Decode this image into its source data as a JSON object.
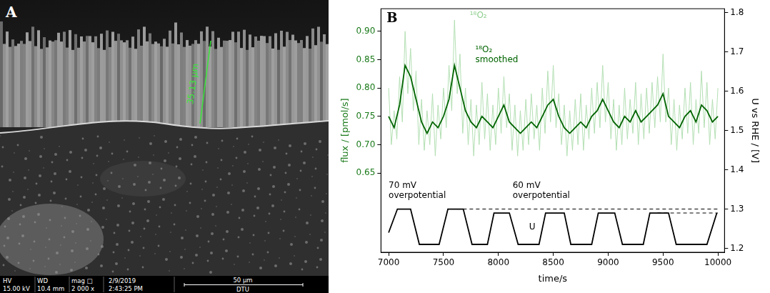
{
  "image_panel": {
    "label": "A",
    "measurement": "35.13 µm",
    "info_bar": [
      {
        "head": "HV",
        "value": "15.00 kV"
      },
      {
        "head": "WD",
        "value": "10.4 mm"
      },
      {
        "head": "mag □",
        "value": "2 000 x"
      },
      {
        "head": "2/9/2019",
        "value": "2:43:25 PM"
      }
    ],
    "scale_bar": "50 µm",
    "institution": "DTU"
  },
  "chart_data": {
    "type": "line",
    "panel_label": "B",
    "xlabel": "time/s",
    "ylabel": "flux / [pmol/s]",
    "y2label": "U vs RHE / [V]",
    "xlim": [
      6930,
      10060
    ],
    "xticks": [
      7000,
      7500,
      8000,
      8500,
      9000,
      9500,
      10000
    ],
    "ylim": [
      0.51,
      0.94
    ],
    "yticks": [
      0.65,
      {
        "value": 0.7,
        "label": "0.70"
      },
      0.75,
      {
        "value": 0.8,
        "label": "0.80"
      },
      0.85,
      {
        "value": 0.9,
        "label": "0.90"
      }
    ],
    "y2lim": [
      1.19,
      1.81
    ],
    "y2ticks": [
      1.2,
      1.3,
      1.4,
      1.5,
      1.6,
      1.7,
      1.8
    ],
    "grid": false,
    "series": [
      {
        "color": "#b3dfb3",
        "x": [
          7000,
          7025,
          7050,
          7075,
          7100,
          7125,
          7150,
          7175,
          7200,
          7225,
          7250,
          7275,
          7300,
          7325,
          7350,
          7375,
          7400,
          7425,
          7450,
          7475,
          7500,
          7525,
          7550,
          7575,
          7600,
          7625,
          7650,
          7675,
          7700,
          7725,
          7750,
          7775,
          7800,
          7825,
          7850,
          7875,
          7900,
          7925,
          7950,
          7975,
          8000,
          8025,
          8050,
          8075,
          8100,
          8125,
          8150,
          8175,
          8200,
          8225,
          8250,
          8275,
          8300,
          8325,
          8350,
          8375,
          8400,
          8425,
          8450,
          8475,
          8500,
          8525,
          8550,
          8575,
          8600,
          8625,
          8650,
          8675,
          8700,
          8725,
          8750,
          8775,
          8800,
          8825,
          8850,
          8875,
          8900,
          8925,
          8950,
          8975,
          9000,
          9025,
          9050,
          9075,
          9100,
          9125,
          9150,
          9175,
          9200,
          9225,
          9250,
          9275,
          9300,
          9325,
          9350,
          9375,
          9400,
          9425,
          9450,
          9475,
          9500,
          9525,
          9550,
          9575,
          9600,
          9625,
          9650,
          9675,
          9700,
          9725,
          9750,
          9775,
          9800,
          9825,
          9850,
          9875,
          9900,
          9925,
          9950,
          9975,
          10000
        ],
        "values": [
          0.8,
          0.7,
          0.76,
          0.71,
          0.82,
          0.74,
          0.9,
          0.79,
          0.87,
          0.76,
          0.83,
          0.7,
          0.78,
          0.69,
          0.76,
          0.7,
          0.79,
          0.68,
          0.77,
          0.71,
          0.8,
          0.73,
          0.84,
          0.76,
          0.92,
          0.79,
          0.86,
          0.72,
          0.8,
          0.7,
          0.78,
          0.68,
          0.77,
          0.7,
          0.81,
          0.71,
          0.79,
          0.69,
          0.77,
          0.7,
          0.8,
          0.72,
          0.82,
          0.73,
          0.79,
          0.69,
          0.77,
          0.68,
          0.76,
          0.69,
          0.78,
          0.7,
          0.79,
          0.71,
          0.77,
          0.69,
          0.8,
          0.72,
          0.83,
          0.74,
          0.84,
          0.73,
          0.79,
          0.7,
          0.77,
          0.68,
          0.76,
          0.69,
          0.78,
          0.7,
          0.79,
          0.69,
          0.77,
          0.71,
          0.8,
          0.72,
          0.81,
          0.73,
          0.84,
          0.74,
          0.81,
          0.71,
          0.78,
          0.69,
          0.77,
          0.7,
          0.8,
          0.71,
          0.78,
          0.72,
          0.81,
          0.7,
          0.79,
          0.71,
          0.8,
          0.72,
          0.81,
          0.73,
          0.82,
          0.74,
          0.86,
          0.74,
          0.8,
          0.7,
          0.78,
          0.69,
          0.77,
          0.71,
          0.8,
          0.72,
          0.81,
          0.7,
          0.78,
          0.72,
          0.83,
          0.73,
          0.81,
          0.7,
          0.78,
          0.71,
          0.8
        ]
      },
      {
        "color": "#006400",
        "x": [
          7000,
          7050,
          7100,
          7150,
          7200,
          7250,
          7300,
          7350,
          7400,
          7450,
          7500,
          7550,
          7600,
          7650,
          7700,
          7750,
          7800,
          7850,
          7900,
          7950,
          8000,
          8050,
          8100,
          8150,
          8200,
          8250,
          8300,
          8350,
          8400,
          8450,
          8500,
          8550,
          8600,
          8650,
          8700,
          8750,
          8800,
          8850,
          8900,
          8950,
          9000,
          9050,
          9100,
          9150,
          9200,
          9250,
          9300,
          9350,
          9400,
          9450,
          9500,
          9550,
          9600,
          9650,
          9700,
          9750,
          9800,
          9850,
          9900,
          9950,
          10000
        ],
        "values": [
          0.75,
          0.73,
          0.77,
          0.84,
          0.82,
          0.78,
          0.74,
          0.72,
          0.74,
          0.73,
          0.75,
          0.78,
          0.84,
          0.8,
          0.76,
          0.74,
          0.73,
          0.75,
          0.74,
          0.73,
          0.75,
          0.77,
          0.74,
          0.73,
          0.72,
          0.73,
          0.74,
          0.73,
          0.75,
          0.77,
          0.78,
          0.75,
          0.73,
          0.72,
          0.73,
          0.74,
          0.73,
          0.75,
          0.76,
          0.78,
          0.76,
          0.74,
          0.73,
          0.75,
          0.74,
          0.76,
          0.74,
          0.75,
          0.76,
          0.77,
          0.79,
          0.75,
          0.74,
          0.73,
          0.75,
          0.76,
          0.74,
          0.77,
          0.76,
          0.74,
          0.75
        ]
      },
      {
        "color": "#000000",
        "axis": "y2",
        "x": [
          7000,
          7080,
          7200,
          7280,
          7460,
          7540,
          7680,
          7760,
          7900,
          7960,
          8100,
          8180,
          8370,
          8430,
          8600,
          8660,
          8850,
          8910,
          9060,
          9130,
          9320,
          9380,
          9550,
          9620,
          9900,
          9990
        ],
        "values": [
          1.24,
          1.3,
          1.3,
          1.21,
          1.21,
          1.3,
          1.3,
          1.21,
          1.21,
          1.29,
          1.29,
          1.21,
          1.21,
          1.29,
          1.29,
          1.21,
          1.21,
          1.29,
          1.29,
          1.21,
          1.21,
          1.29,
          1.29,
          1.21,
          1.21,
          1.29
        ]
      }
    ],
    "reference_lines": [
      {
        "value": 1.3,
        "x": [
          7620,
          10000
        ],
        "axis": "y2",
        "line_style": "dashed",
        "color": "#000000"
      },
      {
        "value": 1.29,
        "x": [
          9450,
          10000
        ],
        "axis": "y2",
        "line_style": "dashed",
        "color": "#000000"
      }
    ],
    "annotations": [
      {
        "text": "¹⁸O₂",
        "x": 7740,
        "y": 0.935,
        "color": "#8fcf8f"
      },
      {
        "text": "¹⁸O₂\nsmoothed",
        "x": 7790,
        "y": 0.875,
        "color": "#006400"
      },
      {
        "text": "70 mV\noverpotential",
        "x": 7000,
        "y": 0.635,
        "color": "#000000"
      },
      {
        "text": "60 mV\noverpotential",
        "x": 8130,
        "y": 0.635,
        "color": "#000000"
      },
      {
        "text": "U",
        "x": 8280,
        "y": 1.265,
        "axis": "y2",
        "color": "#000000"
      }
    ]
  }
}
